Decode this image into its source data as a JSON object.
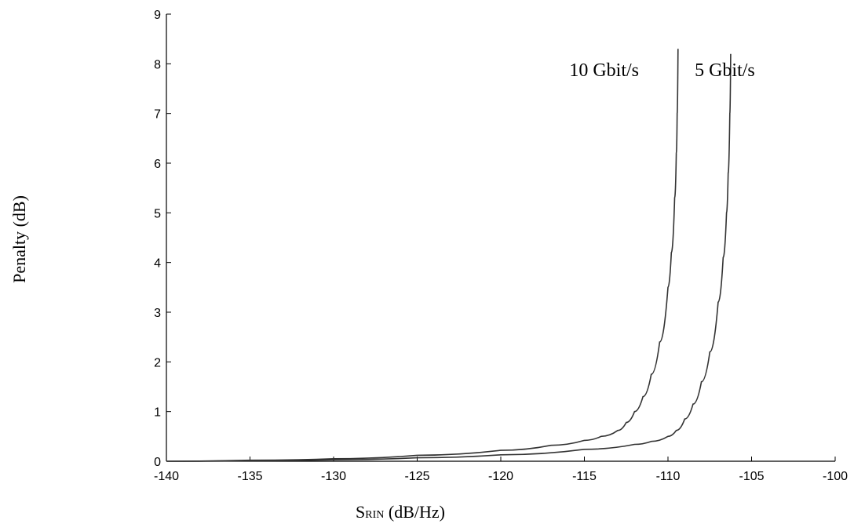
{
  "chart_data": {
    "type": "line",
    "title": "",
    "xlabel": {
      "main": "S",
      "subscript": "RIN",
      "rest": " (dB/Hz)"
    },
    "ylabel": "Penalty (dB)",
    "xlim": [
      -140,
      -100
    ],
    "ylim": [
      0,
      9
    ],
    "xticks": [
      -140,
      -135,
      -130,
      -125,
      -120,
      -115,
      -110,
      -105,
      -100
    ],
    "yticks": [
      0,
      1,
      2,
      3,
      4,
      5,
      6,
      7,
      8,
      9
    ],
    "xtick_labels": [
      "-140",
      "-135",
      "-130",
      "-125",
      "-120",
      "-115",
      "-110",
      "-105",
      "-100"
    ],
    "ytick_labels": [
      "0",
      "1",
      "2",
      "3",
      "4",
      "5",
      "6",
      "7",
      "8",
      "9"
    ],
    "grid": false,
    "legend": "none",
    "line_color": "#333333",
    "series": [
      {
        "x": [
          -140,
          -135,
          -130,
          -125,
          -120,
          -117,
          -115,
          -114,
          -113,
          -112.5,
          -112,
          -111.5,
          -111,
          -110.5,
          -110,
          -109.8,
          -109.6,
          -109.5,
          -109.45,
          -109.4
        ],
        "y": [
          0.0,
          0.02,
          0.05,
          0.12,
          0.22,
          0.32,
          0.42,
          0.5,
          0.62,
          0.78,
          1.0,
          1.3,
          1.75,
          2.4,
          3.5,
          4.2,
          5.3,
          6.2,
          7.0,
          8.3
        ]
      },
      {
        "x": [
          -140,
          -135,
          -130,
          -125,
          -120,
          -115,
          -112,
          -111,
          -110,
          -109.5,
          -109,
          -108.5,
          -108,
          -107.5,
          -107,
          -106.7,
          -106.5,
          -106.4,
          -106.3,
          -106.25
        ],
        "y": [
          0.0,
          0.01,
          0.03,
          0.07,
          0.13,
          0.24,
          0.34,
          0.4,
          0.5,
          0.62,
          0.85,
          1.15,
          1.6,
          2.2,
          3.2,
          4.1,
          5.0,
          5.8,
          7.0,
          8.2
        ]
      }
    ],
    "annotations": [
      {
        "text": "10 Gbit/s",
        "x": -115.9,
        "y": 7.75
      },
      {
        "text": "5 Gbit/s",
        "x": -108.4,
        "y": 7.75
      }
    ]
  }
}
